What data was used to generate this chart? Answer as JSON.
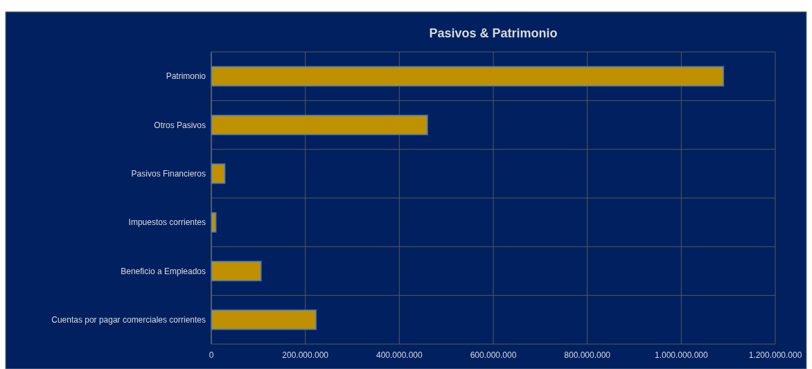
{
  "chart_data": {
    "type": "bar",
    "orientation": "horizontal",
    "title": "Pasivos & Patrimonio",
    "categories": [
      "Patrimonio",
      "Otros Pasivos",
      "Pasivos Financieros",
      "Impuestos corrientes",
      "Beneficio a Empleados",
      "Cuentas por pagar comerciales corrientes"
    ],
    "values": [
      1090000000,
      460000000,
      29000000,
      10000000,
      106000000,
      223000000
    ],
    "color": "#bf9000",
    "xlim": [
      0,
      1200000000
    ],
    "xticks": [
      {
        "value": 0,
        "label": "0"
      },
      {
        "value": 200000000,
        "label": "200.000.000"
      },
      {
        "value": 400000000,
        "label": "400.000.000"
      },
      {
        "value": 600000000,
        "label": "600.000.000"
      },
      {
        "value": 800000000,
        "label": "800.000.000"
      },
      {
        "value": 1000000000,
        "label": "1.000.000.000"
      },
      {
        "value": 1200000000,
        "label": "1.200.000.000"
      }
    ],
    "grid": true
  }
}
